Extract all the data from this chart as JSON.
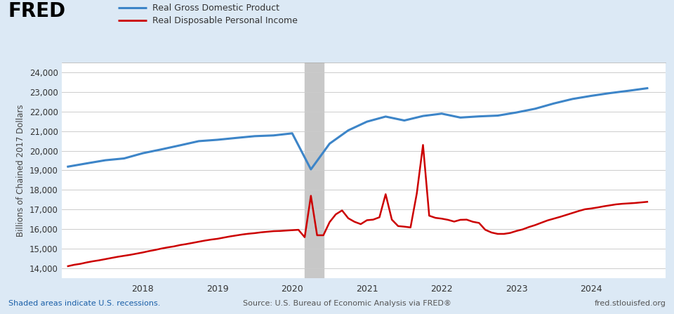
{
  "ylabel": "Billions of Chained 2017 Dollars",
  "ylim": [
    13500,
    24500
  ],
  "yticks": [
    14000,
    15000,
    16000,
    17000,
    18000,
    19000,
    20000,
    21000,
    22000,
    23000,
    24000
  ],
  "background_color": "#dce9f5",
  "plot_bg_color": "#ffffff",
  "grid_color": "#cccccc",
  "recession_start": 2020.167,
  "recession_end": 2020.417,
  "source_text": "Source: U.S. Bureau of Economic Analysis via FRED®",
  "recession_text": "Shaded areas indicate U.S. recessions.",
  "fred_url": "fred.stlouisfed.org",
  "blue_label": "Real Gross Domestic Product",
  "red_label": "Real Disposable Personal Income",
  "blue_color": "#3d85c8",
  "red_color": "#cc0000",
  "gdp_dates": [
    2017.0,
    2017.25,
    2017.5,
    2017.75,
    2018.0,
    2018.25,
    2018.5,
    2018.75,
    2019.0,
    2019.25,
    2019.5,
    2019.75,
    2020.0,
    2020.25,
    2020.5,
    2020.75,
    2021.0,
    2021.25,
    2021.5,
    2021.75,
    2022.0,
    2022.25,
    2022.5,
    2022.75,
    2023.0,
    2023.25,
    2023.5,
    2023.75,
    2024.0,
    2024.25,
    2024.5,
    2024.75
  ],
  "gdp_values": [
    19190,
    19356,
    19517,
    19609,
    19875,
    20072,
    20280,
    20494,
    20563,
    20658,
    20749,
    20786,
    20893,
    19050,
    20365,
    21045,
    21490,
    21750,
    21550,
    21780,
    21900,
    21700,
    21760,
    21800,
    21960,
    22150,
    22420,
    22650,
    22810,
    22950,
    23070,
    23200
  ],
  "income_dates": [
    2017.0,
    2017.083,
    2017.167,
    2017.25,
    2017.333,
    2017.417,
    2017.5,
    2017.583,
    2017.667,
    2017.75,
    2017.833,
    2017.917,
    2018.0,
    2018.083,
    2018.167,
    2018.25,
    2018.333,
    2018.417,
    2018.5,
    2018.583,
    2018.667,
    2018.75,
    2018.833,
    2018.917,
    2019.0,
    2019.083,
    2019.167,
    2019.25,
    2019.333,
    2019.417,
    2019.5,
    2019.583,
    2019.667,
    2019.75,
    2019.833,
    2019.917,
    2020.0,
    2020.083,
    2020.167,
    2020.25,
    2020.333,
    2020.417,
    2020.5,
    2020.583,
    2020.667,
    2020.75,
    2020.833,
    2020.917,
    2021.0,
    2021.083,
    2021.167,
    2021.25,
    2021.333,
    2021.417,
    2021.5,
    2021.583,
    2021.667,
    2021.75,
    2021.833,
    2021.917,
    2022.0,
    2022.083,
    2022.167,
    2022.25,
    2022.333,
    2022.417,
    2022.5,
    2022.583,
    2022.667,
    2022.75,
    2022.833,
    2022.917,
    2023.0,
    2023.083,
    2023.167,
    2023.25,
    2023.333,
    2023.417,
    2023.5,
    2023.583,
    2023.667,
    2023.75,
    2023.833,
    2023.917,
    2024.0,
    2024.083,
    2024.167,
    2024.25,
    2024.333,
    2024.417,
    2024.5,
    2024.583,
    2024.667,
    2024.75
  ],
  "income_values": [
    14100,
    14170,
    14220,
    14290,
    14350,
    14400,
    14460,
    14520,
    14580,
    14630,
    14680,
    14740,
    14800,
    14870,
    14930,
    15000,
    15060,
    15110,
    15180,
    15230,
    15290,
    15350,
    15410,
    15460,
    15500,
    15560,
    15620,
    15670,
    15720,
    15760,
    15790,
    15830,
    15860,
    15890,
    15900,
    15920,
    15940,
    15960,
    15580,
    17700,
    15680,
    15680,
    16350,
    16750,
    16950,
    16550,
    16370,
    16250,
    16450,
    16480,
    16600,
    17780,
    16480,
    16150,
    16120,
    16080,
    17820,
    20300,
    16680,
    16570,
    16530,
    16470,
    16380,
    16470,
    16480,
    16370,
    16310,
    15960,
    15820,
    15750,
    15750,
    15800,
    15900,
    15980,
    16100,
    16200,
    16320,
    16440,
    16530,
    16620,
    16720,
    16820,
    16920,
    17010,
    17050,
    17100,
    17160,
    17210,
    17260,
    17290,
    17310,
    17330,
    17360,
    17390
  ],
  "xlim_start": 2016.92,
  "xlim_end": 2025.0,
  "xtick_positions": [
    2018.0,
    2019.0,
    2020.0,
    2021.0,
    2022.0,
    2023.0,
    2024.0
  ],
  "xtick_labels": [
    "2018",
    "2019",
    "2020",
    "2021",
    "2022",
    "2023",
    "2024"
  ]
}
